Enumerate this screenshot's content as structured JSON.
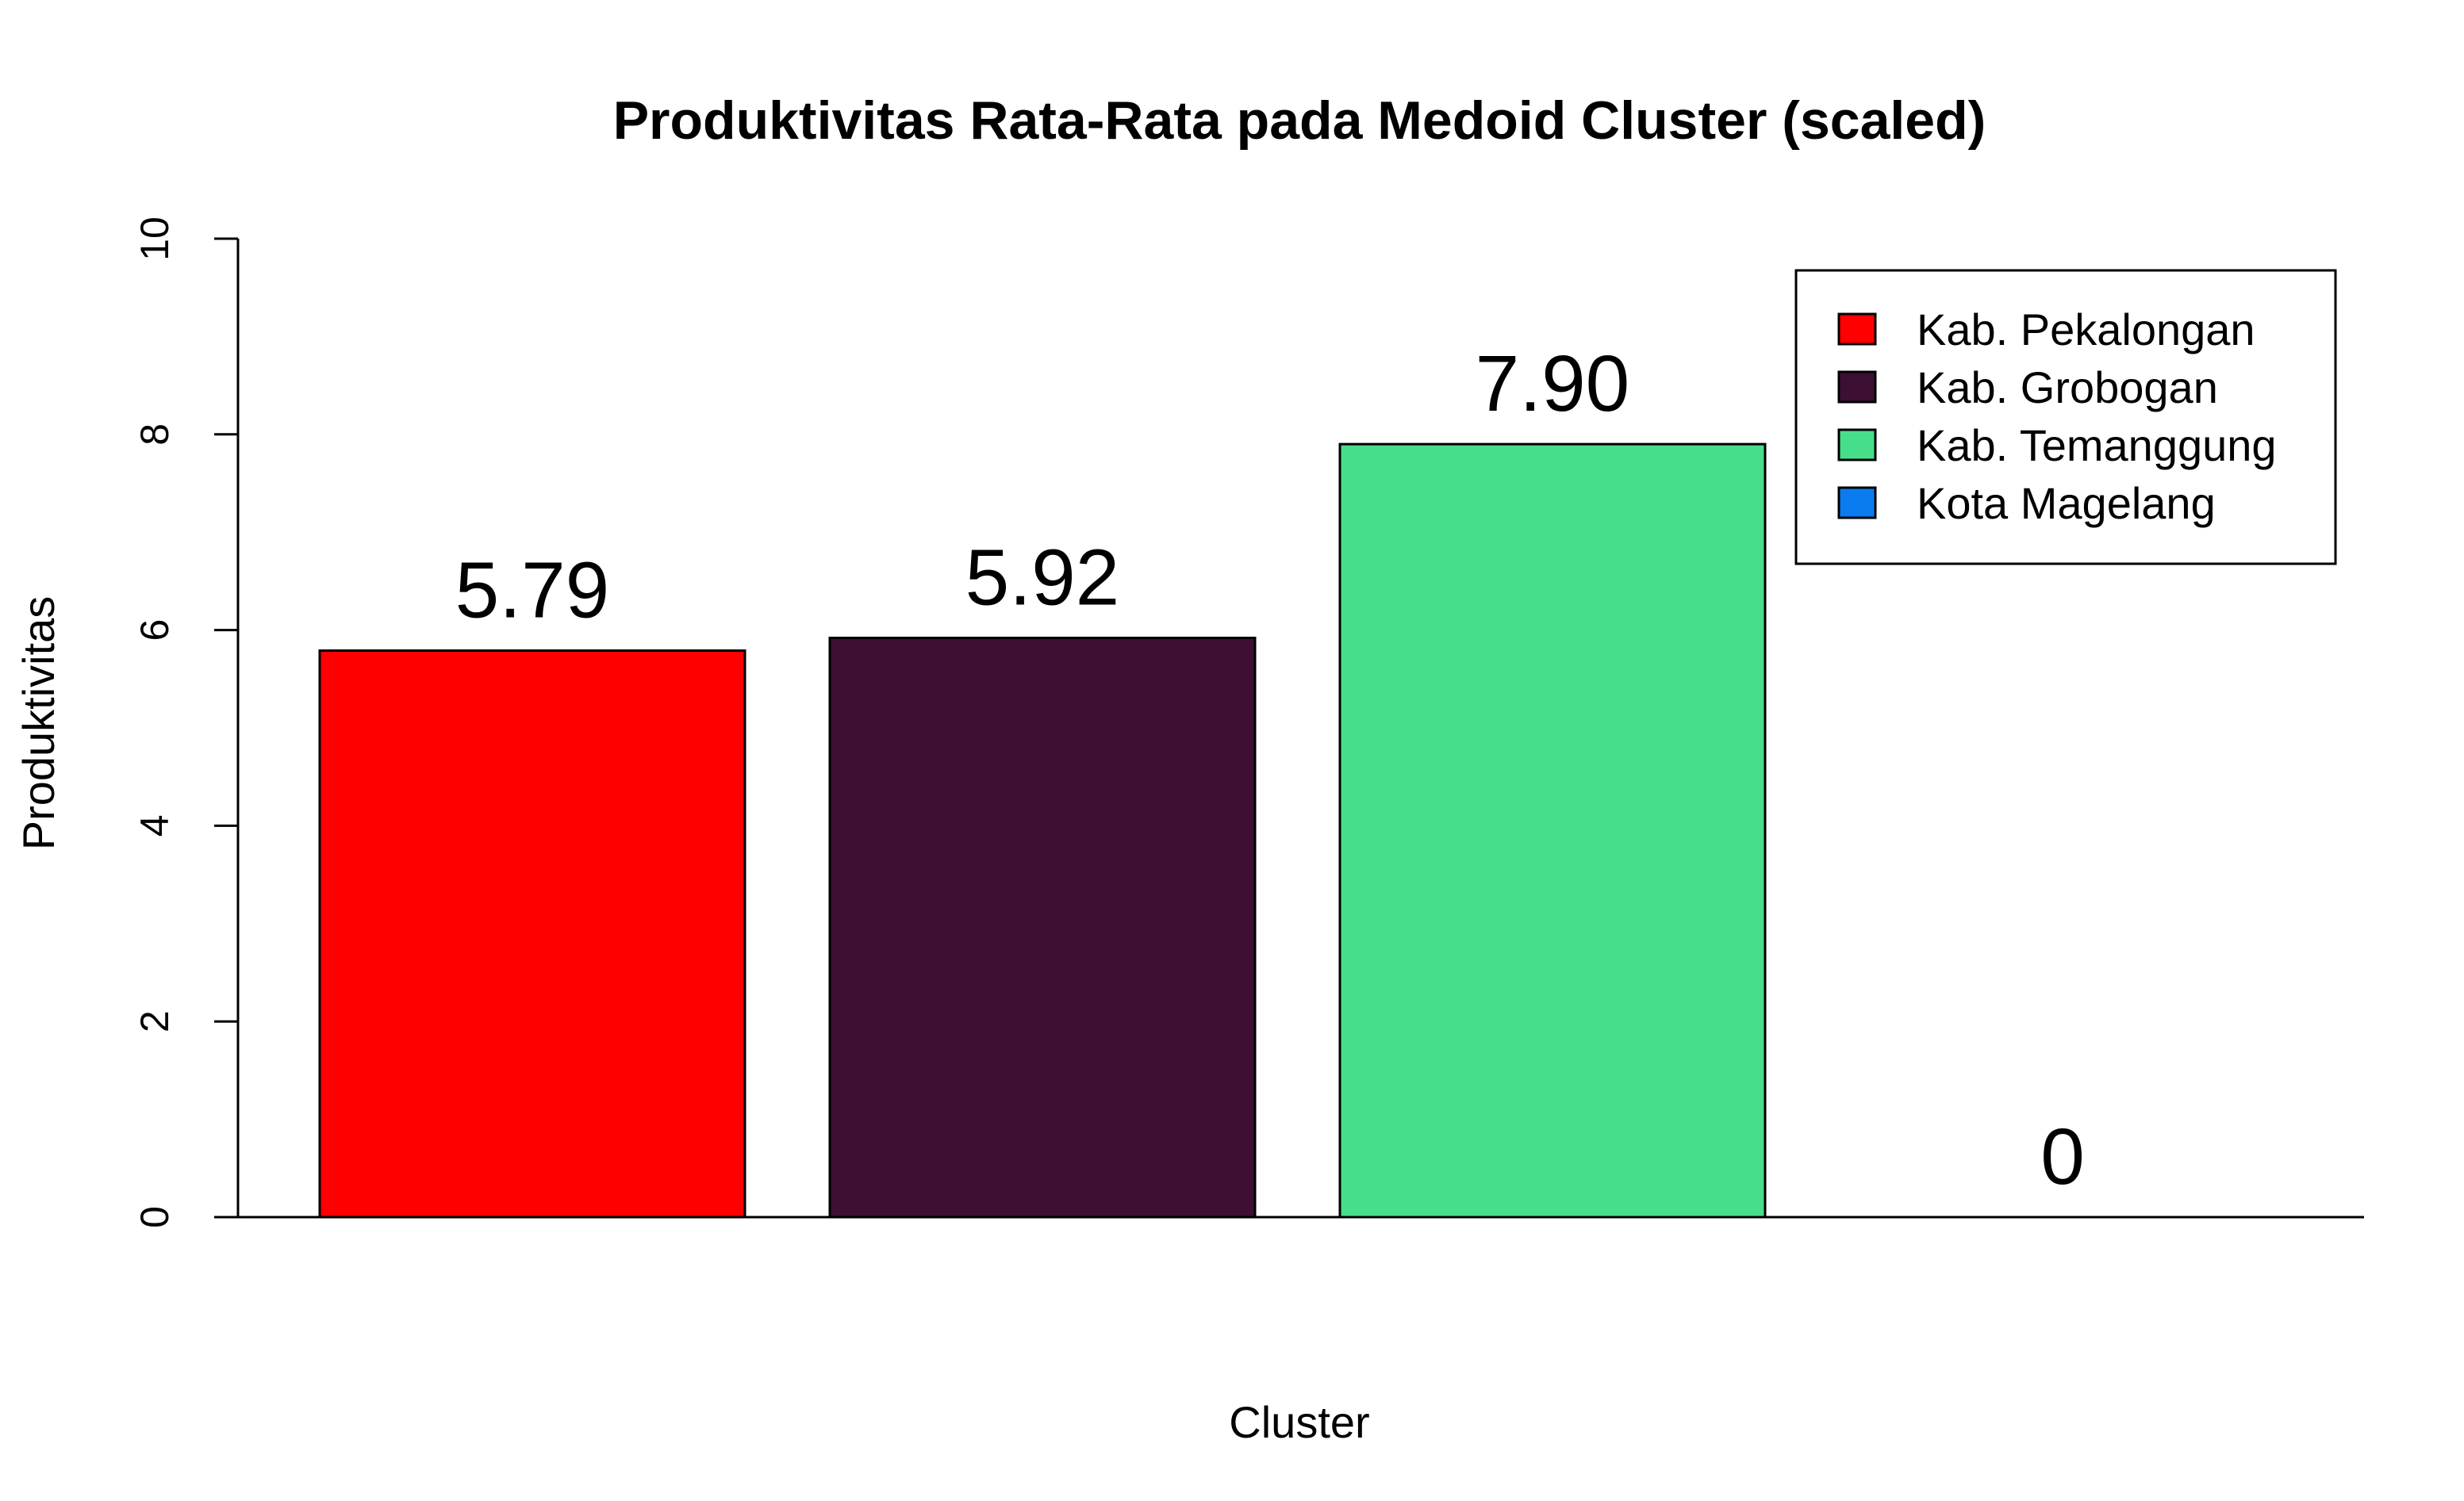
{
  "chart_data": {
    "type": "bar",
    "title": "Produktivitas Rata-Rata pada Medoid Cluster (scaled)",
    "xlabel": "Cluster",
    "ylabel": "Produktivitas",
    "ylim": [
      0,
      10
    ],
    "yticks": [
      0,
      2,
      4,
      6,
      8,
      10
    ],
    "categories": [
      "Kab. Pekalongan",
      "Kab. Grobogan",
      "Kab. Temanggung",
      "Kota Magelang"
    ],
    "values": [
      5.79,
      5.92,
      7.9,
      0
    ],
    "value_labels": [
      "5.79",
      "5.92",
      "7.90",
      "0"
    ],
    "colors": [
      "#ff0000",
      "#3d1033",
      "#47de8a",
      "#0a7cf0"
    ],
    "legend": {
      "placement": "top-right",
      "entries": [
        "Kab. Pekalongan",
        "Kab. Grobogan",
        "Kab. Temanggung",
        "Kota Magelang"
      ]
    },
    "grid": false
  }
}
